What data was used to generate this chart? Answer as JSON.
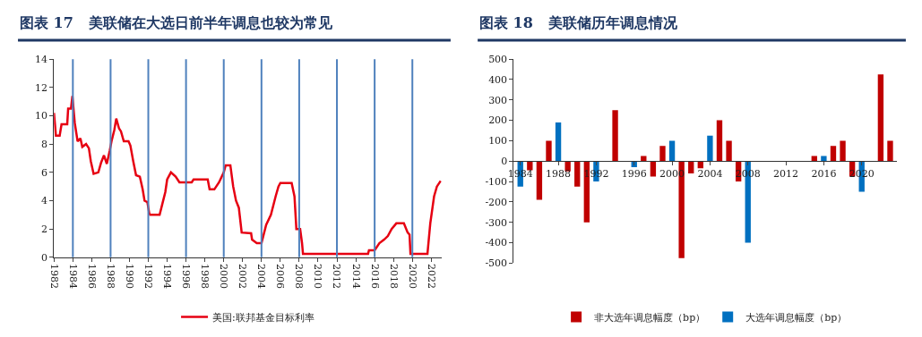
{
  "chart_data": [
    {
      "type": "line",
      "title": "图表 17   美联储在大选日前半年调息也较为常见",
      "legend": "bottom",
      "marker": "none",
      "line_style": "solid",
      "xlim": [
        1982,
        2023.1
      ],
      "xticks": [
        1982,
        1984,
        1986,
        1988,
        1990,
        1992,
        1994,
        1996,
        1998,
        2000,
        2002,
        2004,
        2006,
        2008,
        2010,
        2012,
        2014,
        2016,
        2018,
        2020,
        2022
      ],
      "ylim": [
        0,
        14
      ],
      "yticks": [
        0,
        2,
        4,
        6,
        8,
        10,
        12,
        14
      ],
      "ref_lines": [
        {
          "axis": "x",
          "value": 1984,
          "color": "#4f81bd"
        },
        {
          "axis": "x",
          "value": 1988,
          "color": "#4f81bd"
        },
        {
          "axis": "x",
          "value": 1992,
          "color": "#4f81bd"
        },
        {
          "axis": "x",
          "value": 1996,
          "color": "#4f81bd"
        },
        {
          "axis": "x",
          "value": 2000,
          "color": "#4f81bd"
        },
        {
          "axis": "x",
          "value": 2004,
          "color": "#4f81bd"
        },
        {
          "axis": "x",
          "value": 2008,
          "color": "#4f81bd"
        },
        {
          "axis": "x",
          "value": 2012,
          "color": "#4f81bd"
        },
        {
          "axis": "x",
          "value": 2016,
          "color": "#4f81bd"
        },
        {
          "axis": "x",
          "value": 2020,
          "color": "#4f81bd"
        }
      ],
      "series": [
        {
          "name": "美国:联邦基金目标利率",
          "color": "#e60012",
          "x": [
            1982,
            1982.2,
            1982.6,
            1982.8,
            1983.4,
            1983.5,
            1983.8,
            1983.95,
            1984.2,
            1984.5,
            1984.8,
            1985.0,
            1985.4,
            1985.7,
            1985.9,
            1986.2,
            1986.7,
            1987.0,
            1987.3,
            1987.6,
            1987.9,
            1988.1,
            1988.4,
            1988.6,
            1988.9,
            1989.1,
            1989.4,
            1989.9,
            1990.1,
            1990.4,
            1990.7,
            1991.1,
            1991.4,
            1991.6,
            1991.9,
            1992.1,
            1992.2,
            1993.2,
            1993.5,
            1993.8,
            1994.0,
            1994.4,
            1994.9,
            1995.3,
            1996.6,
            1996.8,
            1998.3,
            1998.5,
            1999.0,
            1999.5,
            2000.0,
            2000.2,
            2000.7,
            2001.0,
            2001.3,
            2001.6,
            2001.9,
            2002.9,
            2003.0,
            2003.5,
            2004.0,
            2004.5,
            2005.0,
            2005.5,
            2005.8,
            2006.0,
            2007.2,
            2007.5,
            2007.7,
            2008.1,
            2008.3,
            2008.4,
            2015.3,
            2015.4,
            2016.0,
            2016.5,
            2017.0,
            2017.4,
            2017.8,
            2018.3,
            2019.1,
            2019.5,
            2019.7,
            2019.8,
            2021.6,
            2021.9,
            2022.3,
            2022.6,
            2023.0
          ],
          "values": [
            10.2,
            8.6,
            8.6,
            9.4,
            9.4,
            10.5,
            10.5,
            11.4,
            9.5,
            8.2,
            8.4,
            7.8,
            8.0,
            7.7,
            6.8,
            5.9,
            6.0,
            6.7,
            7.2,
            6.6,
            7.5,
            8.2,
            9.0,
            9.8,
            9.1,
            8.9,
            8.2,
            8.2,
            7.9,
            6.8,
            5.8,
            5.7,
            4.8,
            4.0,
            3.9,
            3.1,
            3.0,
            3.0,
            3.8,
            4.6,
            5.5,
            6.0,
            5.7,
            5.3,
            5.3,
            5.5,
            5.5,
            4.8,
            4.8,
            5.3,
            6.0,
            6.5,
            6.5,
            5.0,
            4.0,
            3.5,
            1.75,
            1.7,
            1.25,
            1.0,
            1.0,
            2.3,
            3.0,
            4.3,
            5.0,
            5.25,
            5.25,
            4.3,
            2.0,
            2.0,
            1.0,
            0.25,
            0.25,
            0.5,
            0.5,
            1.0,
            1.25,
            1.5,
            2.0,
            2.4,
            2.4,
            1.75,
            1.6,
            0.25,
            0.25,
            2.4,
            4.3,
            5.0,
            5.4
          ]
        }
      ]
    },
    {
      "type": "bar",
      "title": "图表 18   美联储历年调息情况",
      "legend": "bottom",
      "xlim": [
        1983.3,
        2023.7
      ],
      "xticks": [
        1984,
        1988,
        1992,
        1996,
        2000,
        2004,
        2008,
        2012,
        2016,
        2020
      ],
      "ylim": [
        -500,
        500
      ],
      "yticks": [
        -500,
        -400,
        -300,
        -200,
        -100,
        0,
        100,
        200,
        300,
        400,
        500
      ],
      "series": [
        {
          "name": "非大选年调息幅度（bp）",
          "color": "#c00000",
          "x": [
            1985,
            1986,
            1987,
            1989,
            1990,
            1991,
            1994,
            1997,
            1998,
            1999,
            2001,
            2002,
            2003,
            2005,
            2006,
            2007,
            2015,
            2017,
            2018,
            2019,
            2022,
            2023
          ],
          "values": [
            -45,
            -190,
            100,
            -50,
            -125,
            -300,
            250,
            25,
            -75,
            75,
            -475,
            -60,
            -35,
            200,
            100,
            -100,
            25,
            75,
            100,
            -75,
            425,
            100
          ]
        },
        {
          "name": "大选年调息幅度（bp）",
          "color": "#0070c0",
          "x": [
            1984,
            1988,
            1992,
            1996,
            2000,
            2004,
            2008,
            2016,
            2020
          ],
          "values": [
            -125,
            190,
            -100,
            -30,
            100,
            125,
            -400,
            25,
            -150
          ]
        }
      ]
    }
  ]
}
